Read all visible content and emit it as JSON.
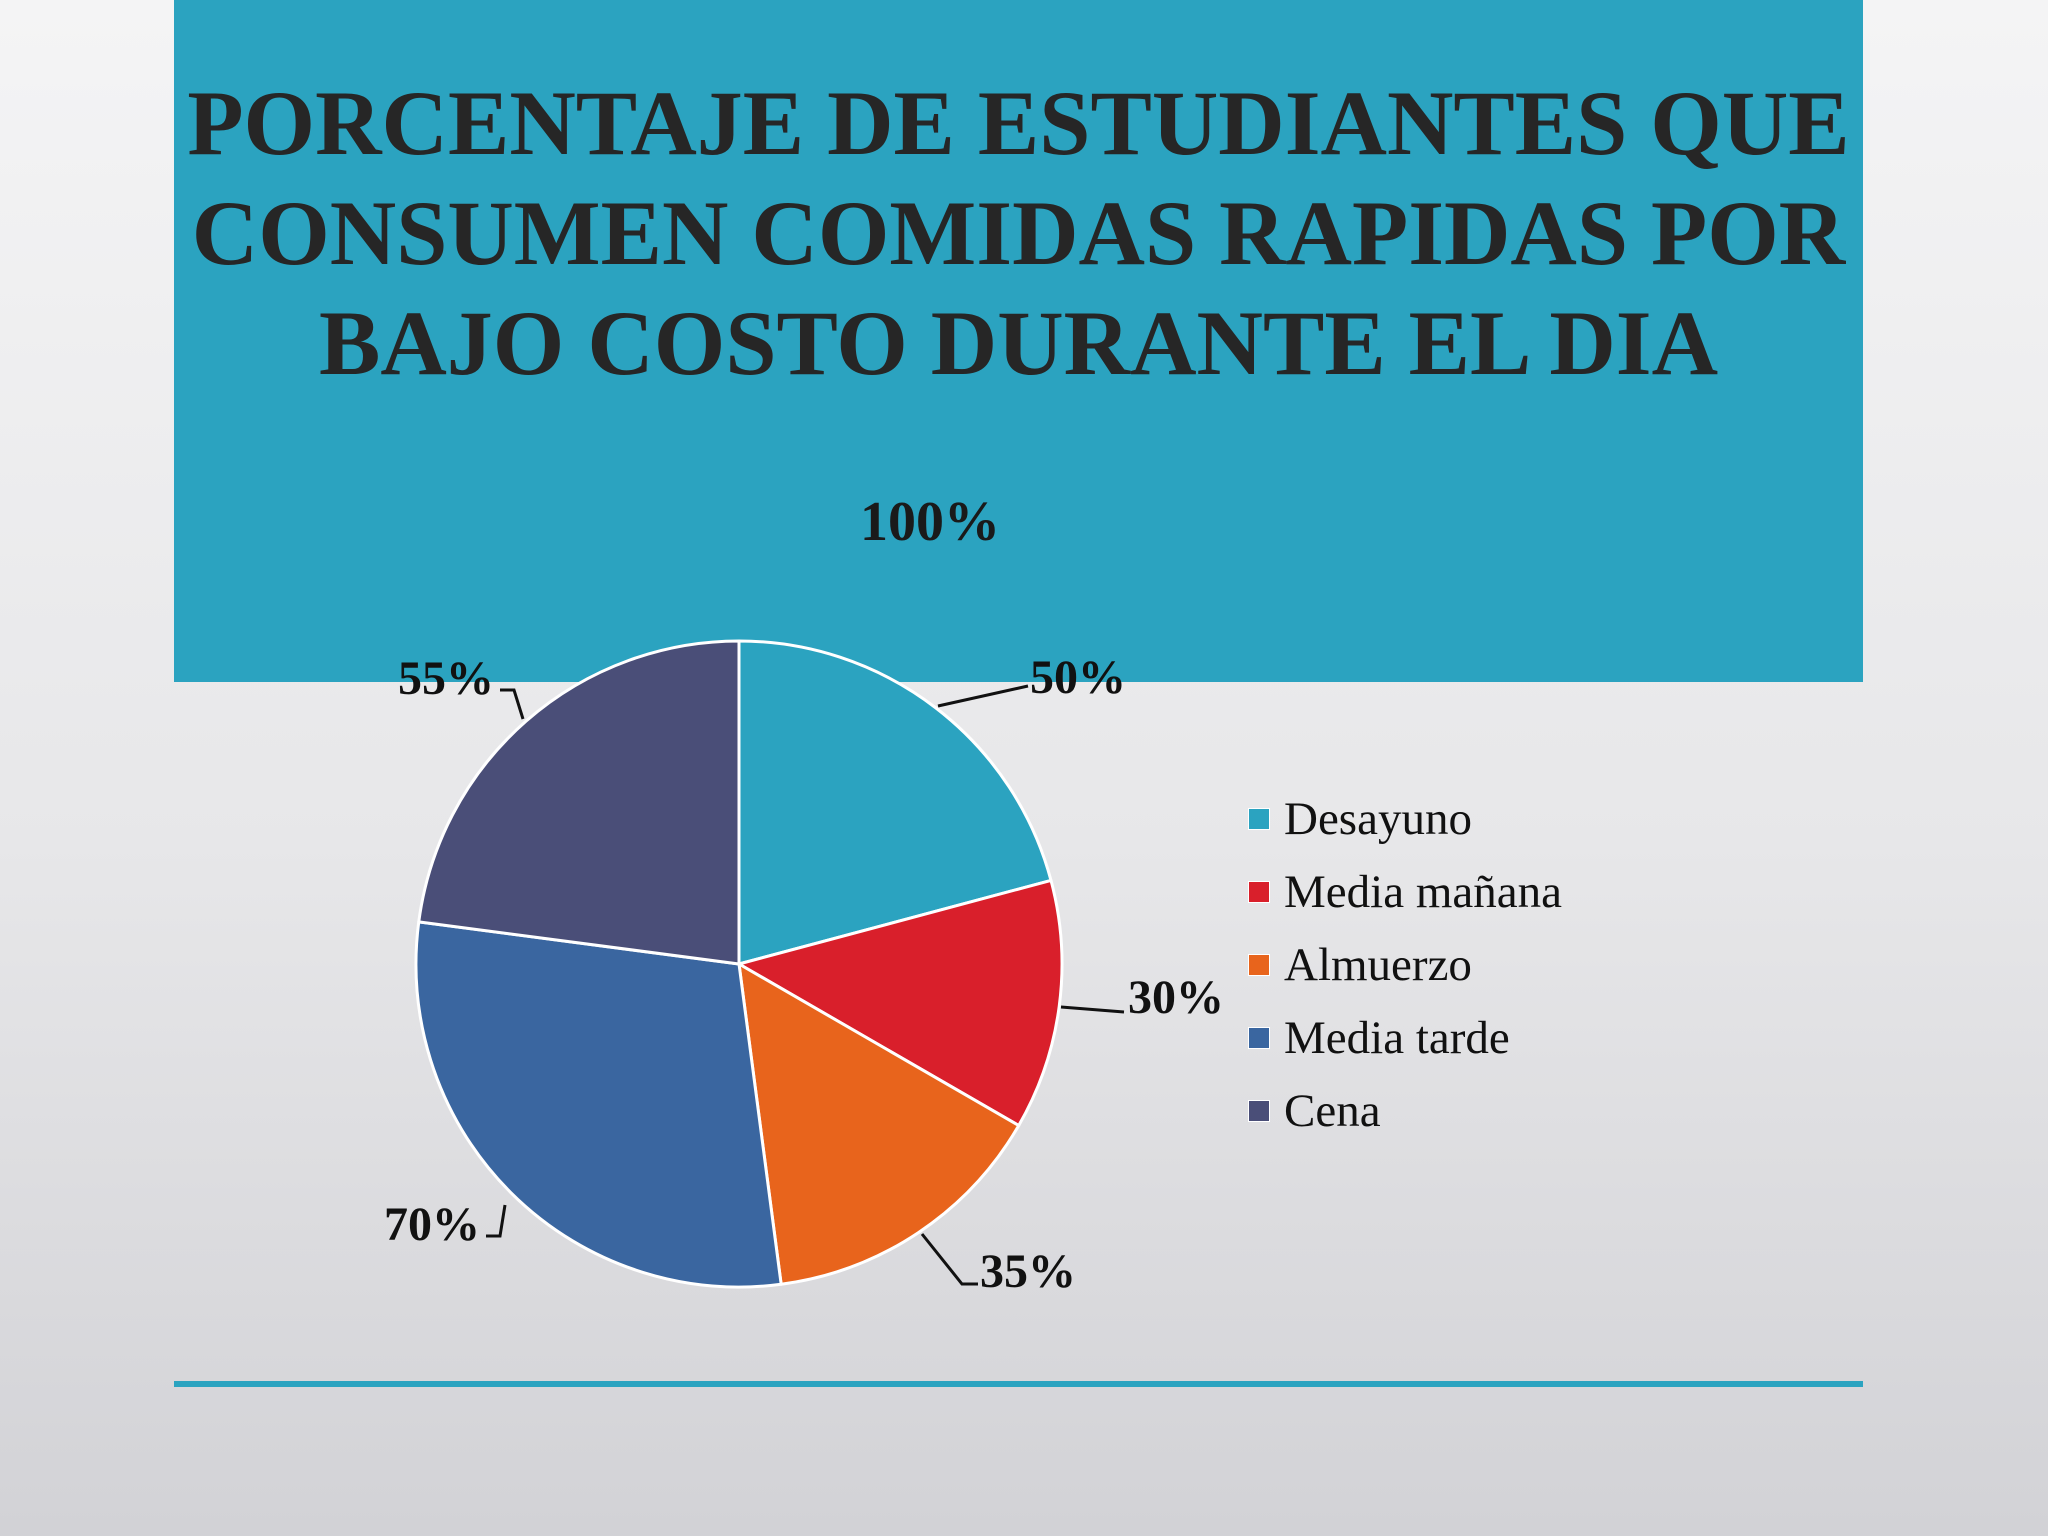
{
  "slide": {
    "title_lines": [
      "PORCENTAJE DE ESTUDIANTES QUE",
      "CONSUMEN COMIDAS RAPIDAS POR",
      "BAJO COSTO DURANTE EL DIA"
    ]
  },
  "colors": {
    "title_band": "#2ba3c0",
    "bottom_rule": "#2ba3c0"
  },
  "chart_data": {
    "type": "pie",
    "title": "100%",
    "legend_position": "right",
    "categories": [
      "Desayuno",
      "Media mañana",
      "Almuerzo",
      "Media tarde",
      "Cena"
    ],
    "values": [
      50,
      30,
      35,
      70,
      55
    ],
    "labels": [
      "50%",
      "30%",
      "35%",
      "70%",
      "55%"
    ],
    "colors": [
      "#2ba3c0",
      "#d91f2b",
      "#e8641c",
      "#3a66a0",
      "#4a4e78"
    ]
  }
}
